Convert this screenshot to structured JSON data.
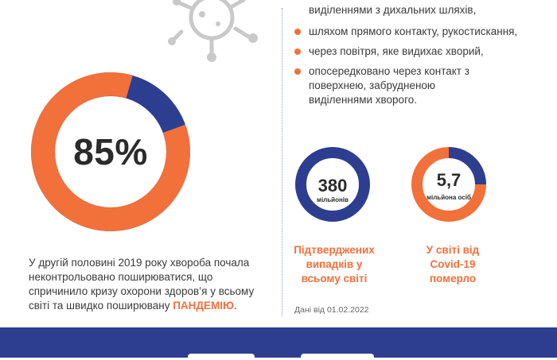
{
  "big_stat": {
    "value": 85,
    "label": "85%",
    "color_main": "#f2703a",
    "color_rest": "#2d3e91"
  },
  "bullets": [
    "виділеннями з дихальних шляхів,",
    "шляхом прямого контакту, рукостискання,",
    "через повітря, яке видихає хворий,",
    "опосередковано через контакт з поверхнею, забрудненою виділеннями хворого."
  ],
  "stats": [
    {
      "number": "380",
      "unit": "мільйонів",
      "label": "Підтверджених випадків у всьому світі"
    },
    {
      "number": "5,7",
      "unit": "мільйона осіб",
      "label": "У світі від Covid-19 померло"
    }
  ],
  "paragraph": {
    "text": "У другій половині 2019 року хвороба почала неконтрольовано поширюватися, що спричинило кризу охорони здоров’я у всьому світі та швидко поширювану",
    "highlight": "ПАНДЕМІЮ",
    "end": "."
  },
  "note": "Дані від 01.02.2022",
  "colors": {
    "orange": "#f2703a",
    "navy": "#2d3e91",
    "gray_icon": "#c9c9c9"
  },
  "icons": {
    "virus": "virus-icon"
  }
}
